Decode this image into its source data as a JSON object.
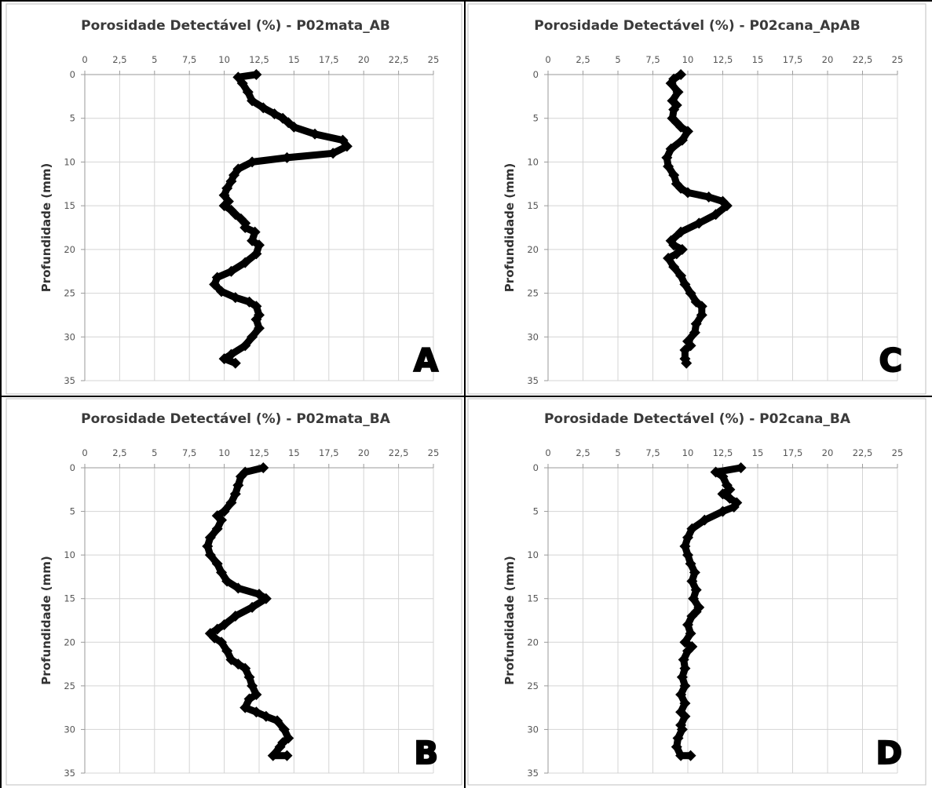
{
  "chart_data": [
    {
      "id": "A",
      "type": "scatter",
      "title": "Porosidade Detectável (%) - P02mata_AB",
      "ylabel": "Profundidade (mm)",
      "panel_label": "A",
      "xlim": [
        0,
        25
      ],
      "ylim": [
        0,
        35
      ],
      "y_inverted": true,
      "x_axis_position": "top",
      "grid": true,
      "x_tick_labels": [
        "0",
        "2,5",
        "5",
        "7,5",
        "10",
        "12,5",
        "15",
        "17,5",
        "20",
        "22,5",
        "25"
      ],
      "y_tick_labels": [
        "0",
        "5",
        "10",
        "15",
        "20",
        "25",
        "30",
        "35"
      ],
      "series": [
        {
          "x": [
            12.3,
            11.0,
            11.3,
            11.7,
            12.0,
            12.8,
            13.6,
            14.2,
            14.6,
            15.0,
            16.5,
            18.5,
            18.8,
            17.8,
            14.5,
            12.0,
            11.0,
            10.7,
            10.5,
            10.2,
            10.0,
            10.3,
            10.0,
            10.5,
            10.8,
            11.2,
            11.5,
            11.5,
            12.2,
            12.0,
            12.5,
            12.3,
            11.5,
            10.5,
            9.5,
            9.3,
            9.8,
            10.8,
            11.8,
            12.3,
            12.5,
            12.3,
            12.5,
            12.0,
            11.5,
            10.5,
            10.0,
            10.8
          ],
          "y": [
            0,
            0.3,
            1,
            2,
            3,
            3.8,
            4.5,
            5,
            5.5,
            6,
            6.8,
            7.5,
            8.2,
            9,
            9.5,
            10,
            10.8,
            11.5,
            12.2,
            13,
            13.8,
            14.5,
            15,
            15.5,
            16,
            16.5,
            17,
            17.5,
            18,
            19,
            19.5,
            20.5,
            21.5,
            22.5,
            23.2,
            24,
            24.8,
            25.5,
            26,
            26.5,
            27.5,
            28,
            29,
            30,
            31,
            32,
            32.5,
            33
          ]
        }
      ]
    },
    {
      "id": "C",
      "type": "scatter",
      "title": "Porosidade Detectável (%) - P02cana_ApAB",
      "ylabel": "Profundidade (mm)",
      "panel_label": "C",
      "xlim": [
        0,
        25
      ],
      "ylim": [
        0,
        35
      ],
      "y_inverted": true,
      "x_axis_position": "top",
      "grid": true,
      "x_tick_labels": [
        "0",
        "2,5",
        "5",
        "7,5",
        "10",
        "12,5",
        "15",
        "17,5",
        "20",
        "22,5",
        "25"
      ],
      "y_tick_labels": [
        "0",
        "5",
        "10",
        "15",
        "20",
        "25",
        "30",
        "35"
      ],
      "series": [
        {
          "x": [
            9.5,
            9.0,
            8.8,
            9.3,
            8.9,
            9.2,
            9.0,
            8.9,
            9.2,
            9.5,
            10.0,
            9.6,
            8.8,
            8.5,
            8.6,
            9.0,
            9.2,
            9.5,
            10.0,
            11.5,
            12.5,
            12.8,
            12.0,
            10.8,
            9.5,
            8.8,
            9.0,
            9.6,
            9.2,
            8.6,
            9.0,
            9.5,
            9.8,
            10.2,
            10.6,
            11.0,
            11.0,
            10.6,
            10.5,
            10.0,
            10.2,
            9.8,
            9.8,
            9.9
          ],
          "y": [
            0,
            0.5,
            1,
            2,
            3,
            3.5,
            4,
            5,
            5.5,
            6,
            6.5,
            7.5,
            8.5,
            9.5,
            10.5,
            11.5,
            12.5,
            13,
            13.5,
            14,
            14.5,
            15,
            16,
            17,
            18,
            19,
            19.5,
            20,
            20.5,
            21,
            22,
            23,
            24,
            25,
            26,
            26.5,
            27.5,
            28.5,
            29.5,
            30.5,
            31,
            31.5,
            32.5,
            33
          ]
        }
      ]
    },
    {
      "id": "B",
      "type": "scatter",
      "title": "Porosidade Detectável (%) - P02mata_BA",
      "ylabel": "Profundidade (mm)",
      "panel_label": "B",
      "xlim": [
        0,
        25
      ],
      "ylim": [
        0,
        35
      ],
      "y_inverted": true,
      "x_axis_position": "top",
      "grid": true,
      "x_tick_labels": [
        "0",
        "2,5",
        "5",
        "7,5",
        "10",
        "12,5",
        "15",
        "17,5",
        "20",
        "22,5",
        "25"
      ],
      "y_tick_labels": [
        "0",
        "5",
        "10",
        "15",
        "20",
        "25",
        "30",
        "35"
      ],
      "series": [
        {
          "x": [
            12.8,
            11.5,
            11.2,
            11.0,
            10.8,
            10.5,
            10.0,
            9.5,
            9.8,
            9.5,
            9.0,
            8.8,
            9.0,
            9.5,
            9.8,
            10.2,
            11.0,
            12.5,
            13.0,
            12.0,
            10.8,
            10.0,
            9.5,
            9.0,
            9.3,
            9.8,
            10.2,
            10.5,
            11.0,
            11.5,
            11.8,
            12.0,
            12.3,
            11.8,
            11.5,
            12.3,
            13.0,
            13.8,
            14.3,
            14.6,
            14.2,
            14.0,
            13.5,
            14.5
          ],
          "y": [
            0,
            0.5,
            1,
            2,
            3,
            4,
            5,
            5.5,
            6,
            7,
            8,
            9,
            10,
            11,
            12,
            13,
            13.8,
            14.5,
            15,
            16,
            17,
            18,
            18.5,
            19,
            19.5,
            20,
            21,
            22,
            22.5,
            23,
            24,
            25,
            26,
            26.5,
            27.5,
            28,
            28.5,
            29,
            30,
            31,
            31.5,
            32,
            33,
            33
          ]
        }
      ]
    },
    {
      "id": "D",
      "type": "scatter",
      "title": "Porosidade Detectável (%) - P02cana_BA",
      "ylabel": "Profundidade (mm)",
      "panel_label": "D",
      "xlim": [
        0,
        25
      ],
      "ylim": [
        0,
        35
      ],
      "y_inverted": true,
      "x_axis_position": "top",
      "grid": true,
      "x_tick_labels": [
        "0",
        "2,5",
        "5",
        "7,5",
        "10",
        "12,5",
        "15",
        "17,5",
        "20",
        "22,5",
        "25"
      ],
      "y_tick_labels": [
        "0",
        "5",
        "10",
        "15",
        "20",
        "25",
        "30",
        "35"
      ],
      "series": [
        {
          "x": [
            13.8,
            12.0,
            12.5,
            12.8,
            13.0,
            12.5,
            13.0,
            13.5,
            13.3,
            12.5,
            11.2,
            10.3,
            10.0,
            9.8,
            10.0,
            10.2,
            10.5,
            10.3,
            10.6,
            10.4,
            10.8,
            10.6,
            10.3,
            10.0,
            10.2,
            9.8,
            10.3,
            10.0,
            9.7,
            9.8,
            9.6,
            9.8,
            9.5,
            9.8,
            9.5,
            9.8,
            9.5,
            9.6,
            9.3,
            9.2,
            9.5,
            10.2
          ],
          "y": [
            0,
            0.5,
            1,
            2,
            2.5,
            3,
            3.5,
            4,
            4.5,
            5,
            6,
            7,
            8,
            9,
            10,
            11,
            12,
            13,
            14,
            15,
            16,
            16.5,
            17,
            18,
            19,
            20,
            20.5,
            21,
            22,
            23,
            24,
            25,
            26,
            27,
            28,
            28.5,
            29.5,
            30,
            31,
            32,
            33,
            33
          ]
        }
      ]
    }
  ]
}
